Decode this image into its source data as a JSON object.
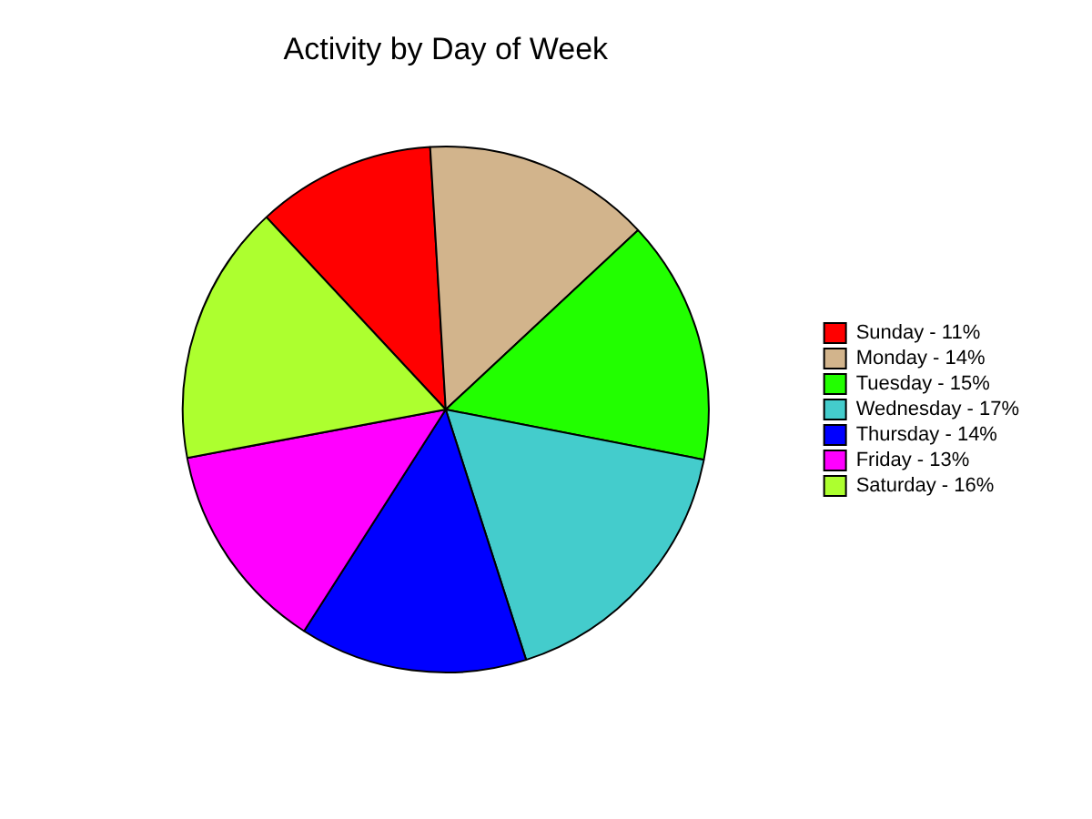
{
  "chart_data": {
    "type": "pie",
    "title": "Activity by Day of Week",
    "categories": [
      "Sunday - 11%",
      "Monday - 14%",
      "Tuesday - 15%",
      "Wednesday - 17%",
      "Thursday - 14%",
      "Friday - 13%",
      "Saturday - 16%"
    ],
    "values": [
      11,
      14,
      15,
      17,
      14,
      13,
      16
    ],
    "colors": [
      "#ff0000",
      "#d2b48c",
      "#22ff00",
      "#44cccc",
      "#0000ff",
      "#ff00ff",
      "#adff2f"
    ],
    "legend": "right"
  }
}
